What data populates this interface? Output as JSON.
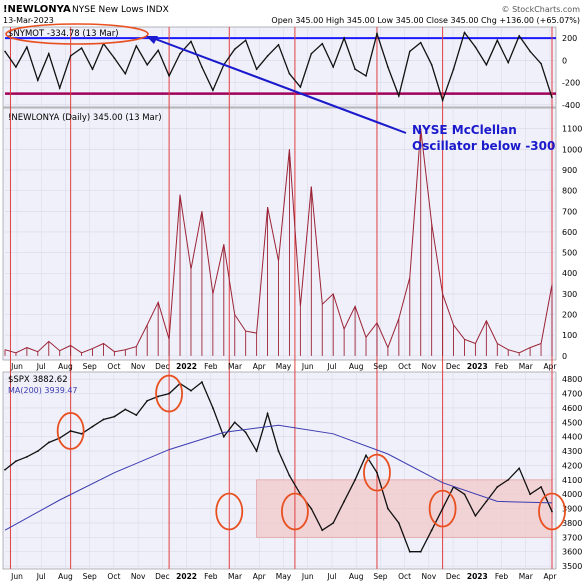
{
  "header": {
    "symbol": "!NEWLONYA",
    "name": "NYSE New Lows INDX",
    "date": "13-Mar-2023",
    "ohlc": "Open 345.00 High 345.00 Low 345.00 Close 345.00 Chg +136.00 (+65.07%)",
    "credit": "© StockCharts.com"
  },
  "annotation": {
    "line1": "NYSE McClellan",
    "line2": "Oscillator below -300"
  },
  "colors": {
    "panel_bg": "#f0f0fa",
    "line": "#111111",
    "upper_ref": "#1a1aff",
    "lower_ref": "#a0005a",
    "newlows": "#9b2335",
    "ma": "#3b3bb0",
    "highlight_box": "#f2c8c8",
    "vline": "#e04040",
    "circle": "#e85020",
    "arrow": "#1a1acc"
  },
  "chart_data": [
    {
      "type": "line",
      "panel": "oscillator",
      "legend": "$NYMOT -334.78 (13 Mar)",
      "y_ticks": [
        200,
        0,
        -200,
        -400
      ],
      "ylim": [
        -420,
        300
      ],
      "reference_lines": [
        200,
        -300
      ],
      "series": [
        {
          "x": [
            0,
            2,
            4,
            6,
            8,
            10,
            12,
            14,
            16,
            18,
            20,
            22,
            24,
            26,
            28,
            30,
            32,
            34,
            36,
            38,
            40,
            42,
            44,
            46,
            48,
            50,
            52,
            54,
            56,
            58,
            60,
            62,
            64,
            66,
            68,
            70,
            72,
            74,
            76,
            78,
            80,
            82,
            84,
            86,
            88,
            90,
            92,
            94,
            96,
            98,
            100
          ],
          "values": [
            80,
            -60,
            120,
            -180,
            60,
            -250,
            40,
            110,
            -80,
            150,
            20,
            -120,
            130,
            -40,
            90,
            -140,
            60,
            170,
            -60,
            -270,
            -40,
            100,
            180,
            -80,
            40,
            140,
            -120,
            -240,
            60,
            150,
            -60,
            200,
            -80,
            -140,
            240,
            -60,
            -320,
            80,
            160,
            -40,
            -360,
            -80,
            250,
            120,
            -40,
            180,
            -20,
            220,
            80,
            -30,
            -335
          ]
        }
      ]
    },
    {
      "type": "bar",
      "panel": "new_lows",
      "legend": "!NEWLONYA (Daily) 345.00 (13 Mar)",
      "y_ticks": [
        0,
        100,
        200,
        300,
        400,
        500,
        600,
        700,
        800,
        900,
        1000,
        1100
      ],
      "ylim": [
        -20,
        1200
      ],
      "series": [
        {
          "x": [
            0,
            2,
            4,
            6,
            8,
            10,
            12,
            14,
            16,
            18,
            20,
            22,
            24,
            26,
            28,
            30,
            32,
            34,
            36,
            38,
            40,
            42,
            44,
            46,
            48,
            50,
            52,
            54,
            56,
            58,
            60,
            62,
            64,
            66,
            68,
            70,
            72,
            74,
            76,
            78,
            80,
            82,
            84,
            86,
            88,
            90,
            92,
            94,
            96,
            98,
            100
          ],
          "values": [
            30,
            15,
            40,
            20,
            70,
            25,
            50,
            15,
            35,
            60,
            20,
            30,
            45,
            150,
            260,
            80,
            780,
            420,
            700,
            300,
            540,
            200,
            120,
            110,
            720,
            460,
            1000,
            240,
            820,
            250,
            300,
            130,
            240,
            90,
            160,
            40,
            180,
            380,
            1100,
            640,
            300,
            150,
            80,
            60,
            170,
            60,
            30,
            15,
            40,
            60,
            345
          ]
        }
      ]
    },
    {
      "type": "line",
      "panel": "spx",
      "legend_price": "$SPX 3882.62",
      "legend_ma": "MA(200) 3939.47",
      "y_ticks": [
        3500,
        3600,
        3700,
        3800,
        3900,
        4000,
        4100,
        4200,
        4300,
        4400,
        4500,
        4600,
        4700,
        4800
      ],
      "ylim": [
        3480,
        4850
      ],
      "highlight_band": [
        3700,
        4100
      ],
      "series": [
        {
          "name": "$SPX",
          "x": [
            0,
            2,
            4,
            6,
            8,
            10,
            12,
            14,
            16,
            18,
            20,
            22,
            24,
            26,
            28,
            30,
            32,
            34,
            36,
            38,
            40,
            42,
            44,
            46,
            48,
            50,
            52,
            54,
            56,
            58,
            60,
            62,
            64,
            66,
            68,
            70,
            72,
            74,
            76,
            78,
            80,
            82,
            84,
            86,
            88,
            90,
            92,
            94,
            96,
            98,
            100
          ],
          "values": [
            4170,
            4230,
            4260,
            4300,
            4360,
            4390,
            4440,
            4420,
            4470,
            4520,
            4540,
            4590,
            4550,
            4650,
            4680,
            4700,
            4770,
            4720,
            4780,
            4600,
            4400,
            4500,
            4430,
            4300,
            4560,
            4300,
            4130,
            4000,
            3900,
            3750,
            3800,
            3950,
            4100,
            4270,
            4150,
            3900,
            3800,
            3600,
            3600,
            3750,
            3900,
            4050,
            4000,
            3850,
            3950,
            4050,
            4100,
            4180,
            4000,
            4050,
            3880
          ]
        },
        {
          "name": "MA(200)",
          "x": [
            0,
            10,
            20,
            30,
            40,
            50,
            60,
            70,
            80,
            90,
            100
          ],
          "values": [
            3750,
            3960,
            4150,
            4310,
            4430,
            4480,
            4420,
            4280,
            4080,
            3950,
            3940
          ]
        }
      ]
    }
  ],
  "x_axis_labels": {
    "top": [
      "Jun",
      "Jul",
      "Aug",
      "Sep",
      "Oct",
      "Nov",
      "Dec",
      "2022",
      "Feb",
      "Mar",
      "Apr",
      "May",
      "Jun",
      "Jul",
      "Aug",
      "Sep",
      "Oct",
      "Nov",
      "Dec",
      "2023",
      "Feb",
      "Mar",
      "Apr"
    ],
    "bottom": [
      "Jun",
      "Jul",
      "Aug",
      "Sep",
      "Oct",
      "Nov",
      "Dec",
      "2022",
      "Feb",
      "Mar",
      "Apr",
      "May",
      "Jun",
      "Jul",
      "Aug",
      "Sep",
      "Oct",
      "Nov",
      "Dec",
      "2023",
      "Feb",
      "Mar",
      "Apr"
    ]
  },
  "signal_x": [
    1,
    12,
    30,
    41,
    53,
    68,
    80,
    100
  ]
}
